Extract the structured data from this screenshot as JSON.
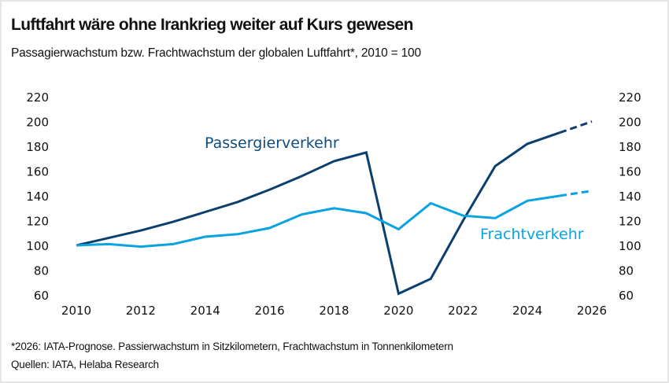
{
  "header": {
    "title": "Luftfahrt wäre ohne Irankrieg weiter auf Kurs gewesen",
    "subtitle": "Passagierwachstum bzw. Frachtwachstum der globalen Luftfahrt*, 2010 = 100"
  },
  "footer": {
    "note": "*2026: IATA-Prognose. Passierwachstum in Sitzkilometern, Frachtwachstum in Tonnenkilometern",
    "source": "Quellen: IATA, Helaba Research"
  },
  "chart_data": {
    "type": "line",
    "title": "Luftfahrt wäre ohne Irankrieg weiter auf Kurs gewesen",
    "subtitle": "Passagierwachstum bzw. Frachtwachstum der globalen Luftfahrt*, 2010 = 100",
    "xlabel": "",
    "ylabel": "",
    "x": [
      2010,
      2011,
      2012,
      2013,
      2014,
      2015,
      2016,
      2017,
      2018,
      2019,
      2020,
      2021,
      2022,
      2023,
      2024,
      2025,
      2026
    ],
    "x_ticks": [
      "2010",
      "2012",
      "2014",
      "2016",
      "2018",
      "2020",
      "2022",
      "2024",
      "2026"
    ],
    "ylim": [
      60,
      220
    ],
    "y_ticks": [
      "60",
      "80",
      "100",
      "120",
      "140",
      "160",
      "180",
      "200",
      "220"
    ],
    "dual_axis": true,
    "grid": false,
    "forecast_from": 2025,
    "series": [
      {
        "name": "Passergierverkehr",
        "color": "#0b3f6e",
        "label_color": "#0f4c7e",
        "values": [
          100,
          106,
          112,
          119,
          127,
          135,
          145,
          156,
          168,
          175,
          61,
          73,
          120,
          164,
          182,
          191,
          200
        ]
      },
      {
        "name": "Frachtverkehr",
        "color": "#0aa3e2",
        "label_color": "#0aa3e2",
        "values": [
          100,
          101,
          99,
          101,
          107,
          109,
          114,
          125,
          130,
          126,
          113,
          134,
          124,
          122,
          136,
          140,
          144
        ]
      }
    ],
    "annotations": [
      {
        "text": "Passergierverkehr",
        "series": 0
      },
      {
        "text": "Frachtverkehr",
        "series": 1
      }
    ]
  }
}
